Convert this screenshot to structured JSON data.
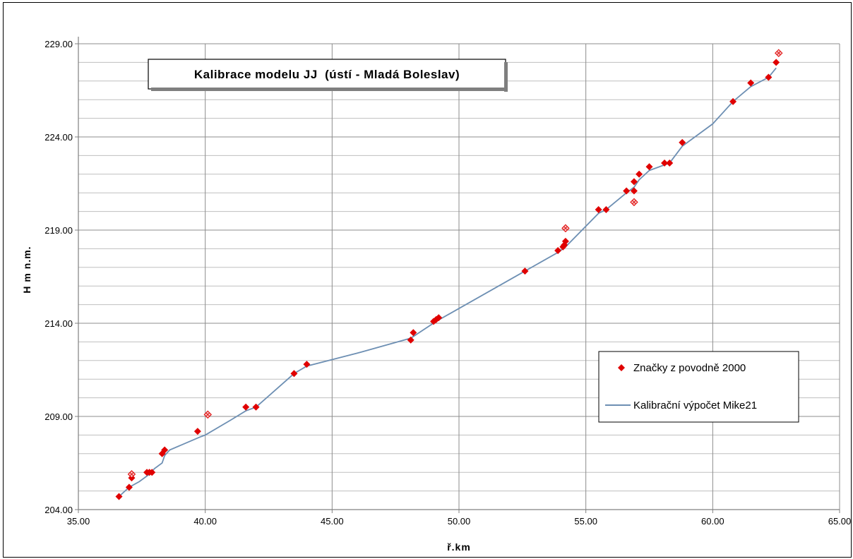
{
  "chart_data": {
    "type": "scatter",
    "title": "Kalibrace modelu JJ  (ústí - Mladá Boleslav)",
    "xlabel": "ř.km",
    "ylabel": "H m n.m.",
    "xlim": [
      35,
      65
    ],
    "ylim": [
      204,
      229
    ],
    "xticks": [
      "35.00",
      "40.00",
      "45.00",
      "50.00",
      "55.00",
      "60.00",
      "65.00"
    ],
    "yticks": [
      "204.00",
      "209.00",
      "214.00",
      "219.00",
      "224.00",
      "229.00"
    ],
    "grid": true,
    "legend_position": "bottom-right",
    "series": [
      {
        "name": "Značky z povodně 2000",
        "kind": "scatter",
        "color": "#e00000",
        "points": [
          [
            36.6,
            204.7
          ],
          [
            37.0,
            205.2
          ],
          [
            37.1,
            205.7
          ],
          [
            37.7,
            206.0
          ],
          [
            37.8,
            206.0
          ],
          [
            37.9,
            206.0
          ],
          [
            38.3,
            207.0
          ],
          [
            38.4,
            207.2
          ],
          [
            39.7,
            208.2
          ],
          [
            41.6,
            209.5
          ],
          [
            42.0,
            209.5
          ],
          [
            43.5,
            211.3
          ],
          [
            44.0,
            211.8
          ],
          [
            48.1,
            213.1
          ],
          [
            48.2,
            213.5
          ],
          [
            49.0,
            214.1
          ],
          [
            49.1,
            214.2
          ],
          [
            49.2,
            214.3
          ],
          [
            52.6,
            216.8
          ],
          [
            53.9,
            217.9
          ],
          [
            54.1,
            218.1
          ],
          [
            54.15,
            218.2
          ],
          [
            54.2,
            218.4
          ],
          [
            55.5,
            220.1
          ],
          [
            55.8,
            220.1
          ],
          [
            56.6,
            221.1
          ],
          [
            56.9,
            221.1
          ],
          [
            56.9,
            221.6
          ],
          [
            57.1,
            222.0
          ],
          [
            57.5,
            222.4
          ],
          [
            58.1,
            222.6
          ],
          [
            58.3,
            222.6
          ],
          [
            58.8,
            223.7
          ],
          [
            60.8,
            225.9
          ],
          [
            61.5,
            226.9
          ],
          [
            62.2,
            227.2
          ],
          [
            62.5,
            228.0
          ]
        ]
      },
      {
        "name": "",
        "kind": "scatter-hatched",
        "color": "#e00000",
        "points": [
          [
            37.1,
            205.9
          ],
          [
            40.1,
            209.1
          ],
          [
            54.2,
            219.1
          ],
          [
            56.9,
            220.5
          ],
          [
            62.6,
            228.5
          ]
        ]
      },
      {
        "name": "Kalibrační výpočet Mike21",
        "kind": "line",
        "color": "#6d8fb3",
        "points": [
          [
            36.6,
            204.7
          ],
          [
            37.0,
            205.2
          ],
          [
            37.4,
            205.5
          ],
          [
            37.8,
            205.9
          ],
          [
            38.0,
            206.2
          ],
          [
            38.3,
            206.5
          ],
          [
            38.4,
            206.9
          ],
          [
            38.6,
            207.2
          ],
          [
            39.8,
            207.9
          ],
          [
            40.0,
            208.0
          ],
          [
            41.0,
            208.8
          ],
          [
            41.6,
            209.3
          ],
          [
            42.0,
            209.5
          ],
          [
            43.5,
            211.3
          ],
          [
            44.0,
            211.7
          ],
          [
            46.0,
            212.4
          ],
          [
            48.1,
            213.2
          ],
          [
            49.1,
            214.1
          ],
          [
            52.6,
            216.8
          ],
          [
            53.9,
            217.8
          ],
          [
            54.2,
            218.1
          ],
          [
            55.5,
            219.9
          ],
          [
            55.8,
            220.1
          ],
          [
            56.6,
            221.0
          ],
          [
            56.9,
            221.3
          ],
          [
            57.1,
            221.7
          ],
          [
            57.5,
            222.2
          ],
          [
            58.1,
            222.5
          ],
          [
            58.3,
            222.6
          ],
          [
            58.8,
            223.5
          ],
          [
            60.0,
            224.7
          ],
          [
            60.8,
            225.9
          ],
          [
            61.5,
            226.7
          ],
          [
            62.2,
            227.2
          ],
          [
            62.5,
            227.7
          ]
        ]
      }
    ]
  }
}
